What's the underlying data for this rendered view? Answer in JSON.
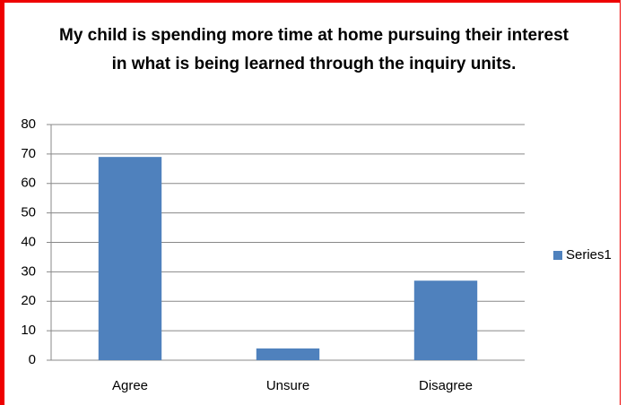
{
  "chart_data": {
    "type": "bar",
    "title": "My child is spending more time at home pursuing their interest in what is being learned through the inquiry units.",
    "categories": [
      "Agree",
      "Unsure",
      "Disagree"
    ],
    "series": [
      {
        "name": "Series1",
        "color": "#4f81bd",
        "values": [
          69,
          4,
          27
        ]
      }
    ],
    "ylim": [
      0,
      80
    ],
    "yticks": [
      0,
      10,
      20,
      30,
      40,
      50,
      60,
      70,
      80
    ],
    "grid": true,
    "legend": "right"
  }
}
